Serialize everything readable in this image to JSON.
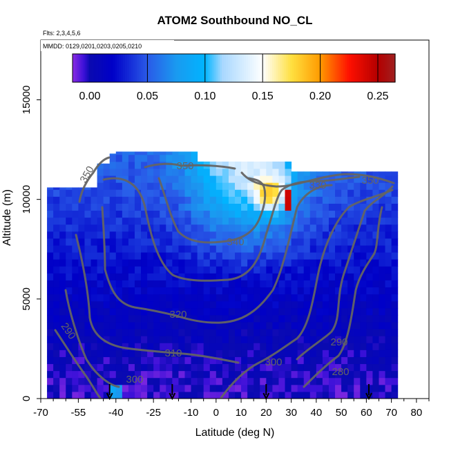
{
  "chart_data": {
    "type": "heatmap",
    "title": "ATOM2 Southbound NO_CL",
    "flights_label": "Flts: 2,3,4,5,6",
    "dates_label": "MMDD: 0129,0201,0203,0205,0210",
    "xlabel": "Latitude (deg N)",
    "ylabel": "Altitude (m)",
    "xlim": [
      -70,
      85
    ],
    "ylim": [
      0,
      18000
    ],
    "x_ticks": [
      -70,
      -55,
      -40,
      -25,
      -10,
      0,
      10,
      20,
      30,
      40,
      50,
      60,
      70,
      80
    ],
    "x_tick_labels": [
      "-70",
      "-55",
      "-40",
      "-25",
      "-10",
      "0",
      "10",
      "20",
      "30",
      "40",
      "50",
      "60",
      "70",
      "80"
    ],
    "y_ticks": [
      0,
      5000,
      10000,
      15000
    ],
    "y_tick_labels": [
      "0",
      "5000",
      "10000",
      "15000"
    ],
    "colorbar": {
      "min": -0.015,
      "max": 0.265,
      "ticks": [
        0.0,
        0.05,
        0.1,
        0.15,
        0.2,
        0.25
      ],
      "tick_labels": [
        "0.00",
        "0.05",
        "0.10",
        "0.15",
        "0.20",
        "0.25"
      ],
      "stops": [
        {
          "v": -0.015,
          "c": "#8a2be2"
        },
        {
          "v": -0.005,
          "c": "#3a10d8"
        },
        {
          "v": 0.0,
          "c": "#0a0ab0"
        },
        {
          "v": 0.02,
          "c": "#0000c8"
        },
        {
          "v": 0.05,
          "c": "#2a5ae8"
        },
        {
          "v": 0.075,
          "c": "#1a9af0"
        },
        {
          "v": 0.1,
          "c": "#00b4ff"
        },
        {
          "v": 0.115,
          "c": "#a8d8ff"
        },
        {
          "v": 0.15,
          "c": "#ffffff"
        },
        {
          "v": 0.175,
          "c": "#ffe040"
        },
        {
          "v": 0.2,
          "c": "#ff9a00"
        },
        {
          "v": 0.225,
          "c": "#ff1000"
        },
        {
          "v": 0.25,
          "c": "#b40000"
        },
        {
          "v": 0.265,
          "c": "#a02020"
        }
      ]
    },
    "data_extent": {
      "lat_range": [
        -67.5,
        72
      ],
      "segments": [
        {
          "lat": [
            -67.5,
            -47
          ],
          "alt_max": 10600
        },
        {
          "lat": [
            -47,
            -43
          ],
          "alt_max": 11800
        },
        {
          "lat": [
            -43,
            -40
          ],
          "alt_max": 12300
        },
        {
          "lat": [
            -40,
            -7
          ],
          "alt_max": 12400
        },
        {
          "lat": [
            -7,
            29
          ],
          "alt_max": 11900
        },
        {
          "lat": [
            29,
            72
          ],
          "alt_max": 11400
        }
      ],
      "value_field": [
        {
          "region": "lower troposphere",
          "value": 0.0
        },
        {
          "region": "mid troposphere",
          "value": 0.01
        },
        {
          "region": "upper troposphere tropics",
          "value": 0.08
        },
        {
          "region": "near tropopause 20-28N",
          "value": 0.12
        },
        {
          "region": "max cell 27-29N 9.5-10.5 km",
          "value": 0.24
        }
      ]
    },
    "contours": [
      {
        "label": "280",
        "level": 280
      },
      {
        "label": "290",
        "level": 290
      },
      {
        "label": "290",
        "level": 290
      },
      {
        "label": "300",
        "level": 300
      },
      {
        "label": "300",
        "level": 300
      },
      {
        "label": "310",
        "level": 310
      },
      {
        "label": "320",
        "level": 320
      },
      {
        "label": "330",
        "level": 330
      },
      {
        "label": "340",
        "level": 340
      },
      {
        "label": "350",
        "level": 350
      },
      {
        "label": "350",
        "level": 350
      },
      {
        "label": "350",
        "level": 350
      }
    ],
    "markers": [
      {
        "type": "arrow-down",
        "lat": -42.5
      },
      {
        "type": "arrow-down",
        "lat": -17.5
      },
      {
        "type": "arrow-down",
        "lat": 20
      },
      {
        "type": "arrow-down",
        "lat": 61
      }
    ]
  }
}
